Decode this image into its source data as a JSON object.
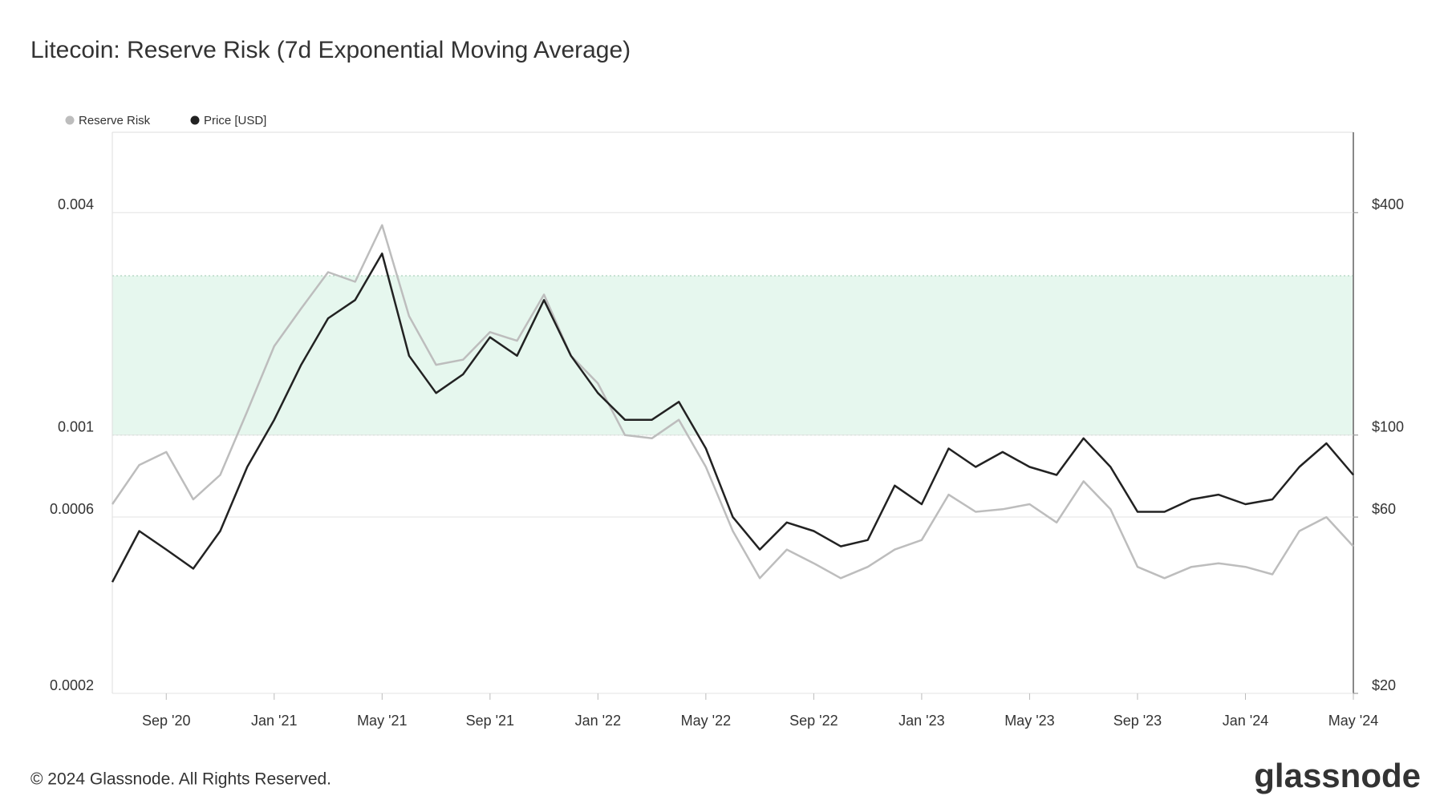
{
  "chart_data": {
    "type": "line",
    "title": "Litecoin: Reserve Risk (7d Exponential Moving Average)",
    "footer": "© 2024 Glassnode. All Rights Reserved.",
    "brand": "glassnode",
    "log_scale": true,
    "grid": true,
    "legend": "top-left",
    "band": [
      0.001,
      0.0027
    ],
    "band_color": "#e6f7ee",
    "x": [
      "2020-07",
      "2020-08",
      "2020-09",
      "2020-10",
      "2020-11",
      "2020-12",
      "2021-01",
      "2021-02",
      "2021-03",
      "2021-04",
      "2021-05",
      "2021-06",
      "2021-07",
      "2021-08",
      "2021-09",
      "2021-10",
      "2021-11",
      "2021-12",
      "2022-01",
      "2022-02",
      "2022-03",
      "2022-04",
      "2022-05",
      "2022-06",
      "2022-07",
      "2022-08",
      "2022-09",
      "2022-10",
      "2022-11",
      "2022-12",
      "2023-01",
      "2023-02",
      "2023-03",
      "2023-04",
      "2023-05",
      "2023-06",
      "2023-07",
      "2023-08",
      "2023-09",
      "2023-10",
      "2023-11",
      "2023-12",
      "2024-01",
      "2024-02",
      "2024-03",
      "2024-04",
      "2024-05"
    ],
    "xlim": [
      "2020-07",
      "2024-05"
    ],
    "xticks": [
      {
        "value": "2020-09",
        "label": "Sep '20"
      },
      {
        "value": "2021-01",
        "label": "Jan '21"
      },
      {
        "value": "2021-05",
        "label": "May '21"
      },
      {
        "value": "2021-09",
        "label": "Sep '21"
      },
      {
        "value": "2022-01",
        "label": "Jan '22"
      },
      {
        "value": "2022-05",
        "label": "May '22"
      },
      {
        "value": "2022-09",
        "label": "Sep '22"
      },
      {
        "value": "2023-01",
        "label": "Jan '23"
      },
      {
        "value": "2023-05",
        "label": "May '23"
      },
      {
        "value": "2023-09",
        "label": "Sep '23"
      },
      {
        "value": "2024-01",
        "label": "Jan '24"
      },
      {
        "value": "2024-05",
        "label": "May '24"
      }
    ],
    "ylim": [
      0.0002,
      0.0066
    ],
    "yticks": [
      0.0002,
      0.0006,
      0.001,
      0.004
    ],
    "y2lim": [
      20,
      660
    ],
    "y2ticks": [
      {
        "value": 20,
        "label": "$20"
      },
      {
        "value": 60,
        "label": "$60"
      },
      {
        "value": 100,
        "label": "$100"
      },
      {
        "value": 400,
        "label": "$400"
      }
    ],
    "series": [
      {
        "name": "Reserve Risk",
        "color": "#bdbdbd",
        "values": [
          0.00065,
          0.00083,
          0.0009,
          0.00067,
          0.00078,
          0.00116,
          0.00174,
          0.0022,
          0.00276,
          0.0026,
          0.0037,
          0.0021,
          0.00155,
          0.0016,
          0.0019,
          0.0018,
          0.0024,
          0.00164,
          0.00138,
          0.001,
          0.00098,
          0.0011,
          0.00082,
          0.00055,
          0.00041,
          0.00049,
          0.00045,
          0.00041,
          0.00044,
          0.00049,
          0.00052,
          0.00069,
          0.00062,
          0.00063,
          0.00065,
          0.00058,
          0.00075,
          0.00063,
          0.00044,
          0.00041,
          0.00044,
          0.00045,
          0.00044,
          0.00042,
          0.00055,
          0.0006,
          0.0005
        ]
      },
      {
        "name": "Price [USD]",
        "color": "#222222",
        "axis": "y2",
        "values": [
          40,
          55,
          49,
          43.5,
          55,
          82,
          110,
          155,
          207,
          232,
          310,
          164,
          130,
          146,
          184,
          164,
          232,
          164,
          130,
          110,
          110,
          123,
          92,
          60,
          49,
          58,
          55,
          50,
          52,
          73,
          65,
          92,
          82,
          90,
          82,
          78,
          98,
          82,
          62,
          62,
          67,
          69,
          65,
          67,
          82,
          95,
          78
        ]
      }
    ]
  }
}
